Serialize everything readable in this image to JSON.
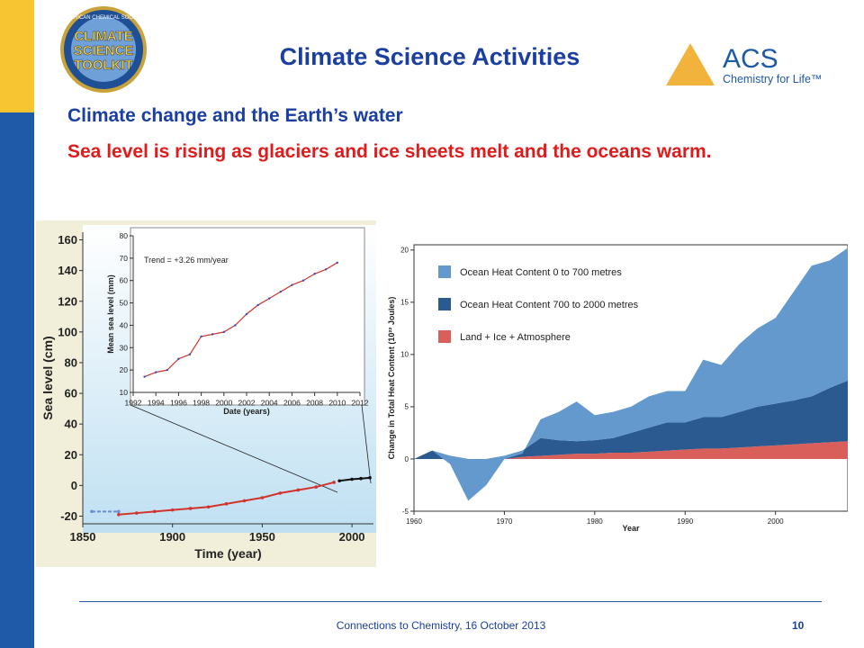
{
  "header": {
    "title": "Climate Science Activities",
    "subtitle": "Climate change and the Earth’s water",
    "text": "Sea level is rising as glaciers and ice sheets melt and the oceans warm."
  },
  "logos": {
    "toolkit": [
      "AMERICAN CHEMICAL SOCIETY",
      "CLIMATE",
      "SCIENCE",
      "TOOLKIT"
    ],
    "acs": "ACS",
    "acs_tagline": "Chemistry for Life™"
  },
  "footer": {
    "text": "Connections to Chemistry, 16 October 2013",
    "page": "10"
  },
  "chart_data": [
    {
      "type": "line",
      "ylabel": "Sea level (cm)",
      "xlabel": "Time (year)",
      "xlim": [
        1850,
        2012
      ],
      "ylim": [
        -25,
        165
      ],
      "xticks": [
        1850,
        1900,
        1950,
        2000
      ],
      "yticks": [
        -20,
        0,
        20,
        40,
        60,
        80,
        100,
        120,
        140,
        160
      ],
      "series": [
        {
          "color": "#6a8fd0",
          "dashed": true,
          "x": [
            1855,
            1870
          ],
          "values": [
            -17,
            -17
          ]
        },
        {
          "color": "#d0342c",
          "x": [
            1870,
            1880,
            1890,
            1900,
            1910,
            1920,
            1930,
            1940,
            1950,
            1960,
            1970,
            1980,
            1990
          ],
          "values": [
            -19,
            -18,
            -17,
            -16,
            -15,
            -14,
            -12,
            -10,
            -8,
            -5,
            -3,
            -1,
            2
          ]
        },
        {
          "color": "#111111",
          "x": [
            1993,
            2000,
            2005,
            2010
          ],
          "values": [
            3,
            4,
            4.5,
            5
          ]
        }
      ]
    },
    {
      "type": "line",
      "ylabel": "Mean sea level (mm)",
      "xlabel": "Date (years)",
      "annotation": "Trend = +3.26 mm/year",
      "xlim": [
        1992,
        2012
      ],
      "ylim": [
        10,
        80
      ],
      "xticks": [
        1992,
        1994,
        1996,
        1998,
        2000,
        2002,
        2004,
        2006,
        2008,
        2010,
        2012
      ],
      "yticks": [
        10,
        20,
        30,
        40,
        50,
        60,
        70,
        80
      ],
      "series": [
        {
          "color": "#d0342c",
          "marker_color": "#3050c0",
          "x": [
            1993,
            1994,
            1995,
            1996,
            1997,
            1998,
            1999,
            2000,
            2001,
            2002,
            2003,
            2004,
            2005,
            2006,
            2007,
            2008,
            2009,
            2010
          ],
          "values": [
            17,
            19,
            20,
            25,
            27,
            35,
            36,
            37,
            40,
            45,
            49,
            52,
            55,
            58,
            60,
            63,
            65,
            68
          ]
        }
      ]
    },
    {
      "type": "stacked_area",
      "ylabel": "Change in Total Heat Content (10²² Joules)",
      "xlabel": "Year",
      "xlim": [
        1960,
        2008
      ],
      "ylim": [
        -5,
        20.5
      ],
      "xticks": [
        1960,
        1970,
        1980,
        1990,
        2000
      ],
      "yticks": [
        -5,
        0,
        5,
        10,
        15,
        20
      ],
      "x": [
        1960,
        1962,
        1964,
        1966,
        1968,
        1970,
        1972,
        1974,
        1976,
        1978,
        1980,
        1982,
        1984,
        1986,
        1988,
        1990,
        1992,
        1994,
        1996,
        1998,
        2000,
        2002,
        2004,
        2006,
        2008
      ],
      "series": [
        {
          "name": "Land + Ice + Atmosphere",
          "color": "#d9605a",
          "values": [
            0,
            0,
            0,
            0,
            0,
            0,
            0.2,
            0.3,
            0.4,
            0.5,
            0.5,
            0.6,
            0.6,
            0.7,
            0.8,
            0.9,
            1.0,
            1.0,
            1.1,
            1.2,
            1.3,
            1.4,
            1.5,
            1.6,
            1.7
          ]
        },
        {
          "name": "Ocean Heat Content 700 to 2000 metres",
          "color": "#2a5a8f",
          "values": [
            0,
            0.8,
            0.3,
            0,
            0,
            0.3,
            0.6,
            1.7,
            1.4,
            1.2,
            1.3,
            1.4,
            1.9,
            2.3,
            2.7,
            2.6,
            3,
            3,
            3.4,
            3.8,
            4,
            4.2,
            4.5,
            5.2,
            5.8
          ]
        },
        {
          "name": "Ocean Heat Content 0 to 700 metres",
          "color": "#6399cd",
          "values": [
            0,
            0,
            -0.8,
            -4,
            -2.5,
            -0.3,
            -0.3,
            1.8,
            2.7,
            3.8,
            2.4,
            2.5,
            2.5,
            3,
            3,
            3,
            5.5,
            5,
            6.5,
            7.5,
            8.2,
            10.4,
            12.5,
            12.2,
            12.7
          ]
        }
      ]
    }
  ]
}
